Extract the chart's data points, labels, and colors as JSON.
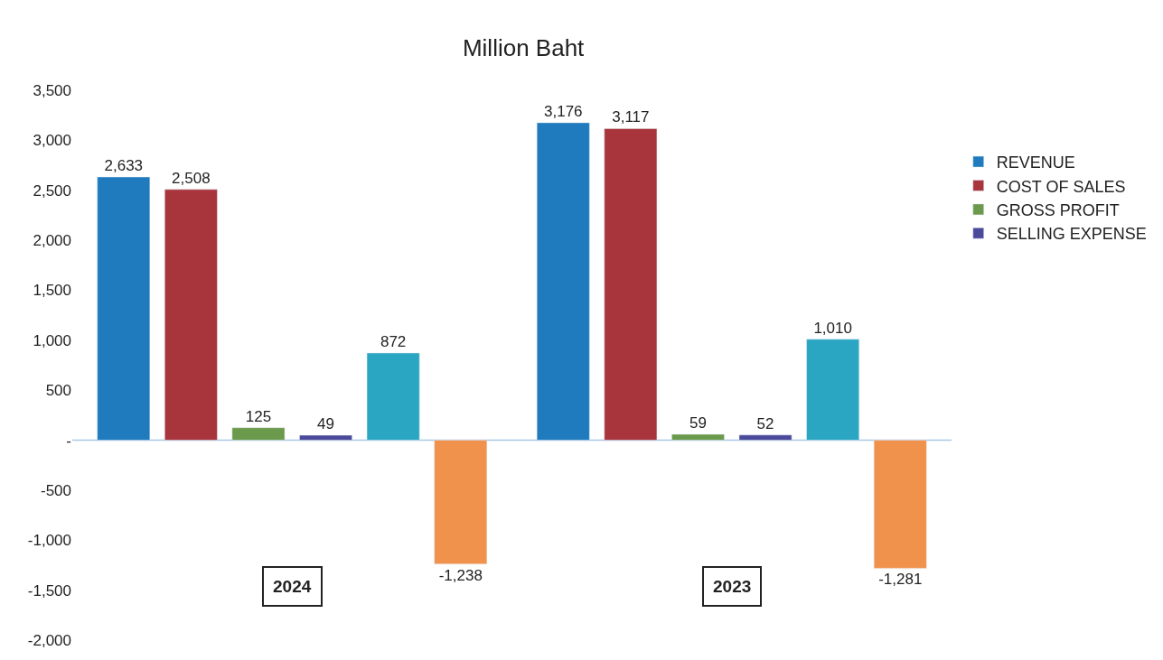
{
  "chart_data": {
    "type": "bar",
    "title": "Million Baht",
    "categories": [
      "2024",
      "2023"
    ],
    "series": [
      {
        "name": "REVENUE",
        "color": "#1f7bbd",
        "values": [
          2633,
          3176
        ],
        "value_labels": [
          "2,633",
          "3,176"
        ]
      },
      {
        "name": "COST OF SALES",
        "color": "#a8343c",
        "values": [
          2508,
          3117
        ],
        "value_labels": [
          "2,508",
          "3,117"
        ]
      },
      {
        "name": "GROSS PROFIT",
        "color": "#6b9a4c",
        "values": [
          125,
          59
        ],
        "value_labels": [
          "125",
          "59"
        ]
      },
      {
        "name": "SELLING EXPENSE",
        "color": "#4b4a9a",
        "values": [
          49,
          52
        ],
        "value_labels": [
          "49",
          "52"
        ]
      },
      {
        "color": "#2ba6c2",
        "values": [
          872,
          1010
        ],
        "value_labels": [
          "872",
          "1,010"
        ]
      },
      {
        "color": "#f0914c",
        "values": [
          -1238,
          -1281
        ],
        "value_labels": [
          "-1,238",
          "-1,281"
        ]
      }
    ],
    "ref_lines": [
      {
        "axis": "y",
        "value": 0,
        "color": "#a9c8e8"
      }
    ],
    "ylim": [
      -2000,
      3500
    ],
    "yticks": [
      {
        "value": -2000,
        "label": "-2,000"
      },
      {
        "value": -1500,
        "label": "-1,500"
      },
      {
        "value": -1000,
        "label": "-1,000"
      },
      {
        "value": -500,
        "label": "-500"
      },
      {
        "value": 0,
        "label": "-"
      },
      {
        "value": 500,
        "label": "500"
      },
      {
        "value": 1000,
        "label": "1,000"
      },
      {
        "value": 1500,
        "label": "1,500"
      },
      {
        "value": 2000,
        "label": "2,000"
      },
      {
        "value": 2500,
        "label": "2,500"
      },
      {
        "value": 3000,
        "label": "3,000"
      },
      {
        "value": 3500,
        "label": "3,500"
      }
    ],
    "grid": false,
    "legend": "right"
  }
}
